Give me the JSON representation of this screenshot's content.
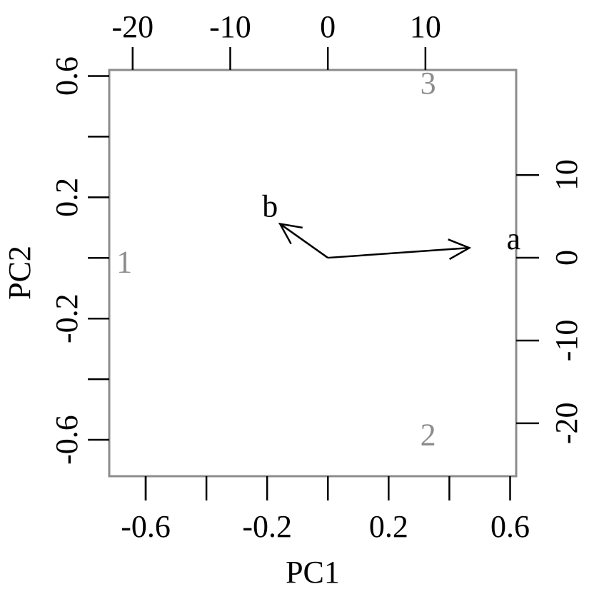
{
  "chart_data": {
    "type": "scatter",
    "subtype": "biplot",
    "xlabel": "PC1",
    "ylabel": "PC2",
    "xlim": [
      -0.72,
      0.62
    ],
    "ylim": [
      -0.72,
      0.62
    ],
    "x_ticks": [
      -0.6,
      -0.4,
      -0.2,
      0,
      0.2,
      0.4,
      0.6
    ],
    "x_tick_labels": [
      "-0.6",
      "",
      "-0.2",
      "",
      "0.2",
      "",
      "0.6"
    ],
    "y_ticks": [
      -0.6,
      -0.4,
      -0.2,
      0,
      0.2,
      0.4,
      0.6
    ],
    "y_tick_labels": [
      "-0.6",
      "",
      "-0.2",
      "",
      "0.2",
      "",
      "0.6"
    ],
    "top_axis": {
      "lim": [
        -22.4,
        19.3
      ],
      "ticks": [
        -20,
        -10,
        0,
        10
      ],
      "tick_labels": [
        "-20",
        "-10",
        "0",
        "10"
      ]
    },
    "right_axis": {
      "lim": [
        -26.4,
        22.7
      ],
      "ticks": [
        -20,
        -10,
        0,
        10
      ],
      "tick_labels": [
        "-20",
        "-10",
        "0",
        "10"
      ]
    },
    "observations": [
      {
        "label": "1",
        "x": -0.67,
        "y": -0.01
      },
      {
        "label": "2",
        "x": 0.33,
        "y": -0.58
      },
      {
        "label": "3",
        "x": 0.33,
        "y": 0.58
      }
    ],
    "variables": [
      {
        "label": "a",
        "x": 14.5,
        "y": 1.2
      },
      {
        "label": "b",
        "x": -4.9,
        "y": 4.1
      }
    ],
    "grid": false,
    "colors": {
      "observations": "#8c8c8c",
      "variables": "#000000",
      "frame": "#8c8c8c",
      "observation_axes": "#000000"
    }
  }
}
